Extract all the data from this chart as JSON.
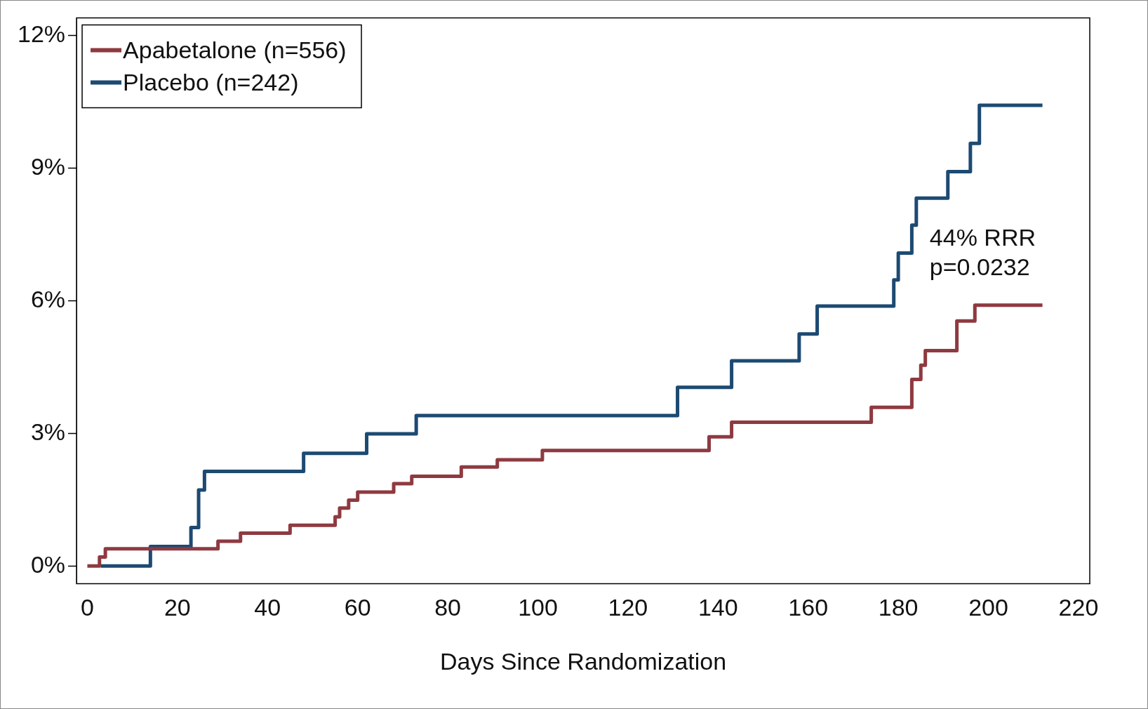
{
  "chart_data": {
    "type": "step",
    "xlabel": "Days Since Randomization",
    "xlim": [
      -2.4,
      222.5
    ],
    "xticks": [
      0,
      20,
      40,
      60,
      80,
      100,
      120,
      140,
      160,
      180,
      200,
      220
    ],
    "ylim": [
      -0.4,
      12.4
    ],
    "yticks": [
      {
        "value": 0,
        "label": "0%"
      },
      {
        "value": 3,
        "label": "3%"
      },
      {
        "value": 6,
        "label": "6%"
      },
      {
        "value": 9,
        "label": "9%"
      },
      {
        "value": 12,
        "label": "12%"
      }
    ],
    "grid": false,
    "legend": "top left",
    "line_style": "solid",
    "marker": "none",
    "annotations": [
      "44% RRR",
      "p=0.0232"
    ],
    "series": [
      {
        "name": "Apabetalone (n=556)",
        "color": "#8e3a40",
        "x": [
          0,
          2.7,
          4,
          29,
          34,
          45,
          55,
          56,
          58,
          60,
          68,
          72,
          83,
          91,
          101,
          138,
          143,
          174,
          183,
          185,
          186,
          193,
          197,
          212
        ],
        "values": [
          0,
          0.2,
          0.39,
          0.56,
          0.74,
          0.92,
          1.11,
          1.31,
          1.49,
          1.67,
          1.86,
          2.03,
          2.24,
          2.4,
          2.61,
          2.92,
          3.25,
          3.59,
          4.22,
          4.54,
          4.87,
          5.54,
          5.9,
          5.9
        ]
      },
      {
        "name": "Placebo (n=242)",
        "color": "#1d4a72",
        "x": [
          3,
          14,
          23,
          24.7,
          26,
          48,
          62,
          73,
          131,
          143,
          158,
          162,
          179,
          180,
          183,
          184,
          191,
          196,
          198,
          212
        ],
        "values": [
          0,
          0.44,
          0.87,
          1.72,
          2.14,
          2.55,
          2.99,
          3.4,
          4.04,
          4.64,
          5.25,
          5.88,
          6.47,
          7.08,
          7.71,
          8.32,
          8.92,
          9.56,
          10.42,
          10.42
        ]
      }
    ]
  }
}
